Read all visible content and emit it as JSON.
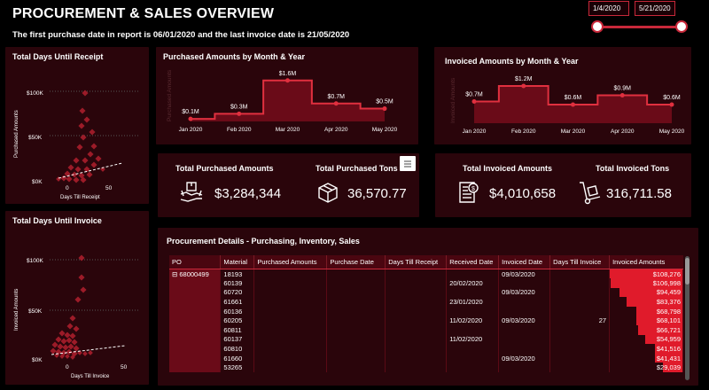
{
  "header": {
    "title": "PROCUREMENT & SALES OVERVIEW",
    "subtitle": "The first purchase date in report is 06/01/2020 and the last invoice date is 21/05/2020"
  },
  "date_filter": {
    "start": "1/4/2020",
    "end": "5/21/2020"
  },
  "colors": {
    "accent": "#c8283a",
    "panel": "#2a050b",
    "bar": "#e01b2b",
    "background": "#000000"
  },
  "receipt_scatter": {
    "title": "Total Days Until Receipt",
    "xlabel": "Days Till Receipt",
    "ylabel": "Purchased Amounts",
    "yticks": [
      "$100K",
      "$50K",
      "$0K"
    ],
    "xticks": [
      "0",
      "50"
    ]
  },
  "invoice_scatter": {
    "title": "Total Days Until Invoice",
    "xlabel": "Days Till Invoice",
    "ylabel": "Invoiced Amounts",
    "yticks": [
      "$100K",
      "$50K",
      "$0K"
    ],
    "xticks": [
      "0",
      "50"
    ]
  },
  "chart_data": [
    {
      "type": "area",
      "title": "Purchased Amounts by Month & Year",
      "ylabel": "Purchased Amounts",
      "categories": [
        "Jan 2020",
        "Feb 2020",
        "Mar 2020",
        "Apr 2020",
        "May 2020"
      ],
      "values": [
        0.1,
        0.3,
        1.6,
        0.7,
        0.5
      ],
      "data_labels": [
        "$0.1M",
        "$0.3M",
        "$1.6M",
        "$0.7M",
        "$0.5M"
      ],
      "ylim": [
        0,
        1.8
      ]
    },
    {
      "type": "area",
      "title": "Invoiced Amounts by Month & Year",
      "ylabel": "Invoiced Amounts",
      "categories": [
        "Jan 2020",
        "Feb 2020",
        "Mar 2020",
        "Apr 2020",
        "May 2020"
      ],
      "values": [
        0.7,
        1.2,
        0.6,
        0.9,
        0.6
      ],
      "data_labels": [
        "$0.7M",
        "$1.2M",
        "$0.6M",
        "$0.9M",
        "$0.6M"
      ],
      "ylim": [
        0,
        1.4
      ]
    }
  ],
  "kpis": {
    "purchased_amounts": {
      "label": "Total Purchased Amounts",
      "value": "$3,284,344",
      "icon": "hand-box-icon"
    },
    "purchased_tons": {
      "label": "Total Purchased Tons",
      "value": "36,570.77",
      "icon": "box-icon"
    },
    "invoiced_amounts": {
      "label": "Total Invoiced Amounts",
      "value": "$4,010,658",
      "icon": "invoice-icon"
    },
    "invoiced_tons": {
      "label": "Total Invoiced Tons",
      "value": "316,711.58",
      "icon": "hand-truck-icon"
    }
  },
  "details": {
    "title": "Procurement Details - Purchasing, Inventory, Sales",
    "columns": [
      "PO",
      "Material",
      "Purchased Amounts",
      "Purchase Date",
      "Days Till Receipt",
      "Received Date",
      "Invoiced Date",
      "Days Till Invoice",
      "Invoiced Amounts"
    ],
    "po": "68000499",
    "rows": [
      {
        "material": "18193",
        "received": "",
        "invoiced": "09/03/2020",
        "days_invoice": "",
        "amount": "$108,276",
        "pct": 1.0
      },
      {
        "material": "60139",
        "received": "20/02/2020",
        "invoiced": "",
        "days_invoice": "",
        "amount": "$106,998",
        "pct": 0.988
      },
      {
        "material": "60720",
        "received": "",
        "invoiced": "09/03/2020",
        "days_invoice": "",
        "amount": "$94,459",
        "pct": 0.872
      },
      {
        "material": "61661",
        "received": "23/01/2020",
        "invoiced": "",
        "days_invoice": "",
        "amount": "$83,376",
        "pct": 0.77
      },
      {
        "material": "60136",
        "received": "",
        "invoiced": "",
        "days_invoice": "",
        "amount": "$68,798",
        "pct": 0.635
      },
      {
        "material": "60205",
        "received": "11/02/2020",
        "invoiced": "09/03/2020",
        "days_invoice": "27",
        "amount": "$68,101",
        "pct": 0.629
      },
      {
        "material": "60811",
        "received": "",
        "invoiced": "",
        "days_invoice": "",
        "amount": "$66,721",
        "pct": 0.616
      },
      {
        "material": "60137",
        "received": "11/02/2020",
        "invoiced": "",
        "days_invoice": "",
        "amount": "$54,959",
        "pct": 0.508
      },
      {
        "material": "60810",
        "received": "",
        "invoiced": "",
        "days_invoice": "",
        "amount": "$41,516",
        "pct": 0.383
      },
      {
        "material": "61660",
        "received": "",
        "invoiced": "09/03/2020",
        "days_invoice": "",
        "amount": "$41,431",
        "pct": 0.383
      },
      {
        "material": "53265",
        "received": "",
        "invoiced": "",
        "days_invoice": "",
        "amount": "$29,039",
        "pct": 0.268
      }
    ]
  }
}
